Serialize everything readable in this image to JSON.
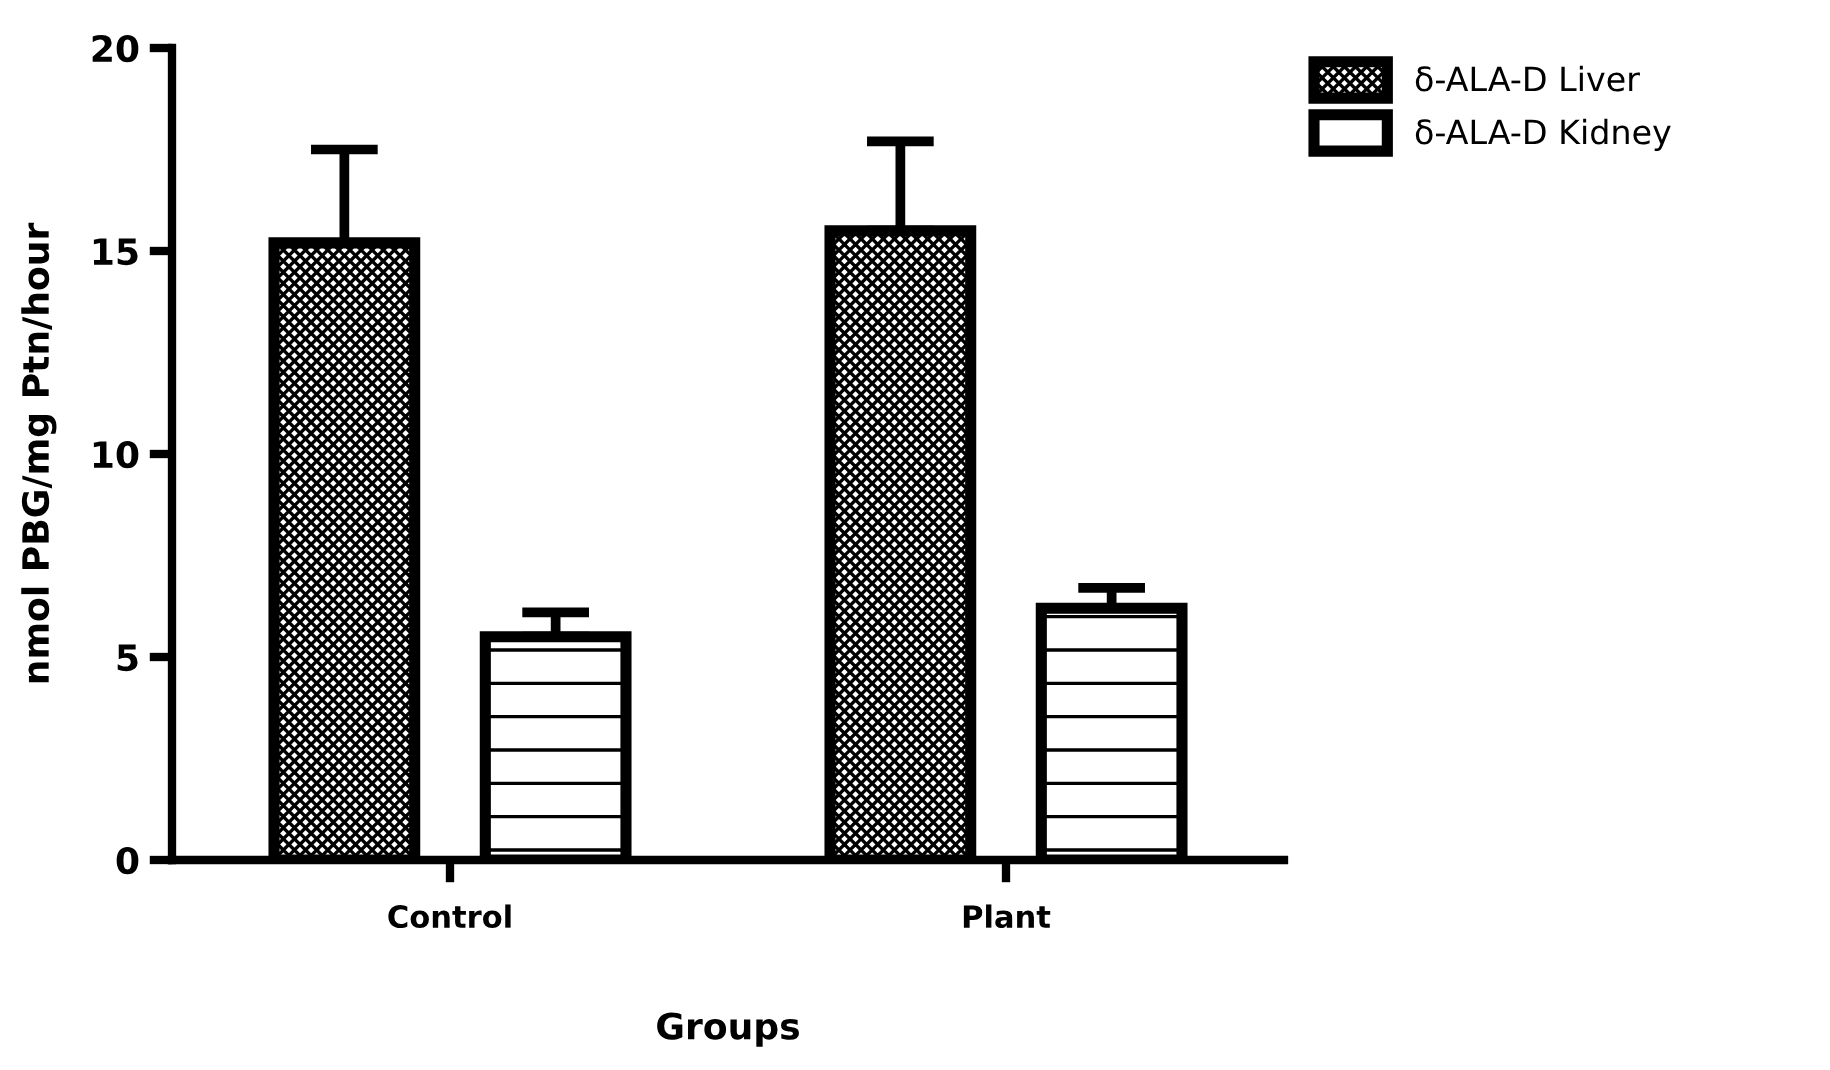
{
  "chart_data": {
    "type": "bar",
    "xlabel": "Groups",
    "ylabel": "nmol PBG/mg Ptn/hour",
    "categories": [
      "Control",
      "Plant"
    ],
    "series": [
      {
        "name": "δ-ALA-D Liver",
        "color": "#000000",
        "values": [
          15.2,
          15.5
        ],
        "errors": [
          [
            15.2,
            17.5
          ],
          [
            15.5,
            17.7
          ]
        ]
      },
      {
        "name": "δ-ALA-D Kidney",
        "color": "#000000",
        "values": [
          5.5,
          6.2
        ],
        "errors": [
          [
            5.5,
            6.1
          ],
          [
            6.2,
            6.7
          ]
        ]
      }
    ],
    "ylim": [
      0,
      20
    ],
    "yticks": [
      0,
      5,
      10,
      15,
      20
    ],
    "grid": false,
    "legend": "top right"
  }
}
